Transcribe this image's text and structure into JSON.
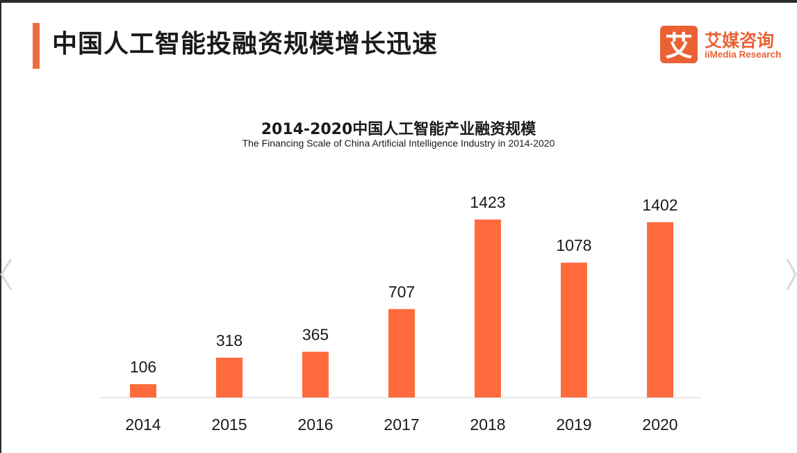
{
  "page": {
    "title": "中国人工智能投融资规模增长迅速",
    "accent_color": "#f26d3d"
  },
  "logo": {
    "mark": "艾",
    "name_cn": "艾媒咨询",
    "name_en": "iiMedia Research",
    "color": "#ea6134"
  },
  "chart_data": {
    "type": "bar",
    "title": "2014-2020中国人工智能产业融资规模",
    "subtitle": "The Financing Scale of China Artificial Intelligence Industry  in 2014-2020",
    "categories": [
      "2014",
      "2015",
      "2016",
      "2017",
      "2018",
      "2019",
      "2020"
    ],
    "values": [
      106,
      318,
      365,
      707,
      1423,
      1078,
      1402
    ],
    "data_labels": [
      "106",
      "318",
      "365",
      "707",
      "1423",
      "1078",
      "1402"
    ],
    "ylim": [
      0,
      1423
    ],
    "bar_color": "#ff6b3d",
    "grid": false,
    "legend": "none"
  },
  "navigation": {
    "prev_icon": "chevron-left-icon",
    "next_icon": "chevron-right-icon"
  }
}
